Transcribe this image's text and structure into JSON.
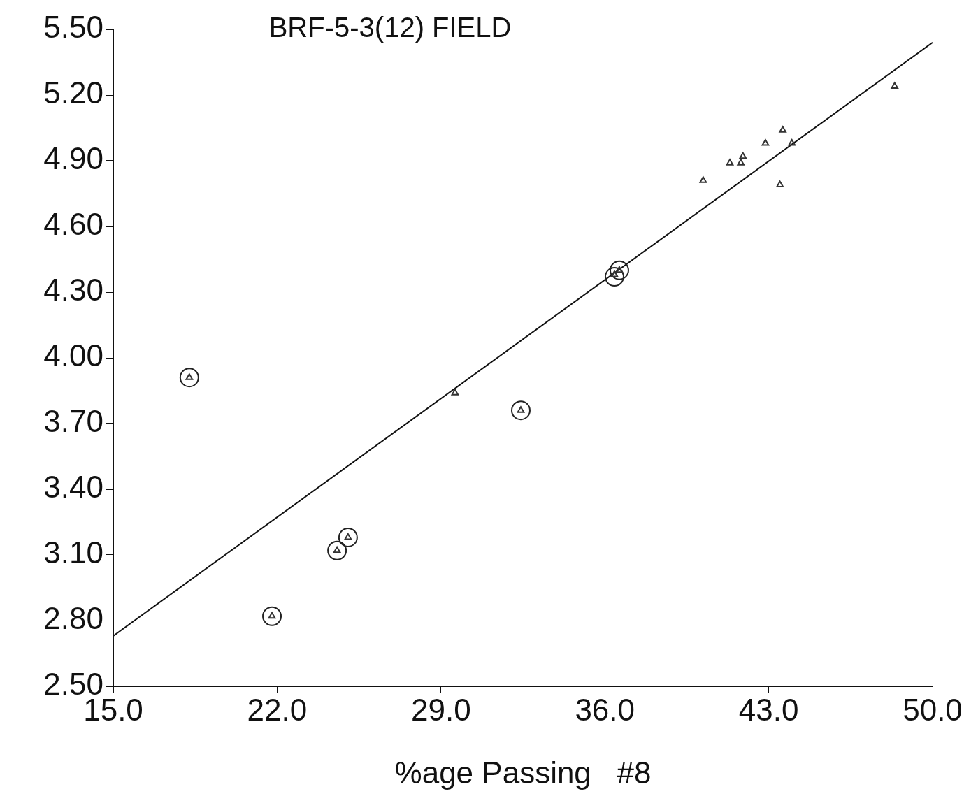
{
  "chart_data": {
    "type": "scatter",
    "title": "BRF-5-3(12) FIELD",
    "xlabel": "%age Passing   #8",
    "xlim": [
      15,
      50
    ],
    "xticks": [
      {
        "value": 15,
        "label": "15.0"
      },
      {
        "value": 22,
        "label": "22.0"
      },
      {
        "value": 29,
        "label": "29.0"
      },
      {
        "value": 36,
        "label": "36.0"
      },
      {
        "value": 43,
        "label": "43.0"
      },
      {
        "value": 50,
        "label": "50.0"
      }
    ],
    "ylim": [
      2.5,
      5.5
    ],
    "yticks": [
      {
        "value": 2.5,
        "label": "2.50"
      },
      {
        "value": 2.8,
        "label": "2.80"
      },
      {
        "value": 3.1,
        "label": "3.10"
      },
      {
        "value": 3.4,
        "label": "3.40"
      },
      {
        "value": 3.7,
        "label": "3.70"
      },
      {
        "value": 4.0,
        "label": "4.00"
      },
      {
        "value": 4.3,
        "label": "4.30"
      },
      {
        "value": 4.6,
        "label": "4.60"
      },
      {
        "value": 4.9,
        "label": "4.90"
      },
      {
        "value": 5.2,
        "label": "5.20"
      },
      {
        "value": 5.5,
        "label": "5.50"
      }
    ],
    "grid": false,
    "legend": false,
    "series": [
      {
        "type": "scatter",
        "marker": "triangle",
        "color": "#333333",
        "x": [
          18.25,
          21.78,
          24.56,
          25.03,
          29.6,
          32.41,
          36.41,
          36.62,
          40.2,
          41.34,
          41.81,
          41.9,
          42.86,
          43.6,
          43.48,
          43.99,
          48.38
        ],
        "values": [
          3.91,
          2.82,
          3.12,
          3.18,
          3.84,
          3.76,
          4.38,
          4.4,
          4.81,
          4.89,
          4.89,
          4.92,
          4.98,
          5.04,
          4.79,
          4.98,
          5.24
        ]
      },
      {
        "type": "scatter",
        "marker": "circle",
        "color": "#222222",
        "x": [
          18.25,
          21.78,
          24.56,
          25.03,
          32.41,
          36.41,
          36.62
        ],
        "values": [
          3.91,
          2.82,
          3.12,
          3.18,
          3.76,
          4.37,
          4.4
        ]
      },
      {
        "type": "line",
        "marker": "none",
        "line_style": "solid",
        "color": "#111111",
        "x": [
          15,
          50
        ],
        "values": [
          2.73,
          5.44
        ]
      }
    ]
  }
}
